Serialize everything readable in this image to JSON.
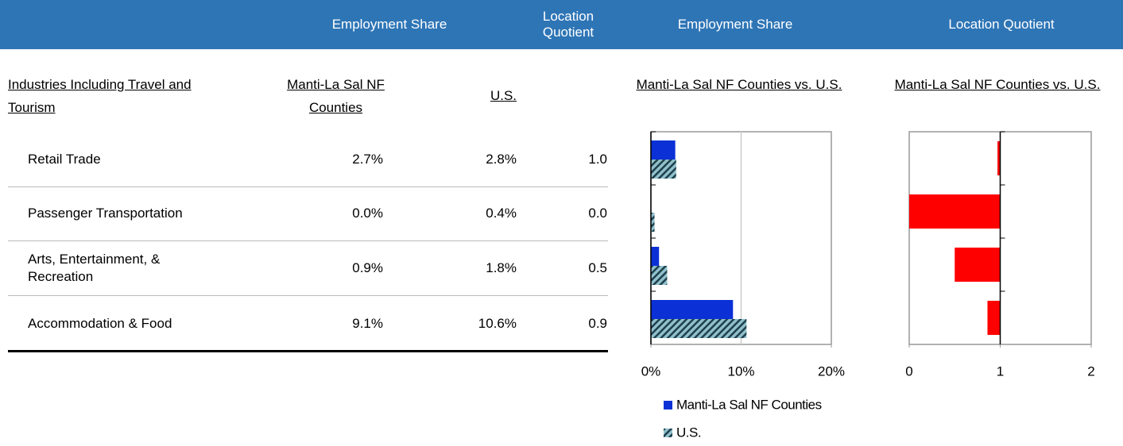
{
  "table": {
    "bands": [
      "Employment Share",
      "Location Quotient"
    ],
    "columns": [
      "Industries Including Travel and Tourism",
      "Manti-La Sal NF Counties",
      "U.S."
    ],
    "rows": [
      [
        "Retail Trade",
        "2.7%",
        "2.8%",
        "1.0"
      ],
      [
        "Passenger Transportation",
        "0.0%",
        "0.4%",
        "0.0"
      ],
      [
        "Arts, Entertainment, & Recreation",
        "0.9%",
        "1.8%",
        "0.5"
      ],
      [
        "Accommodation & Food",
        "9.1%",
        "10.6%",
        "0.9"
      ]
    ]
  },
  "chart_data": [
    {
      "type": "bar",
      "orientation": "horizontal",
      "title": "Employment Share",
      "subtitle": "Manti-La Sal NF Counties vs. U.S.",
      "series": [
        {
          "name": "Manti-La Sal NF Counties",
          "color": "#0b31d6",
          "values": [
            2.7,
            0.0,
            0.9,
            9.1
          ]
        },
        {
          "name": "U.S.",
          "color": "#8fc0cc",
          "hatch": true,
          "values": [
            2.8,
            0.4,
            1.8,
            10.6
          ]
        }
      ],
      "xlim": [
        0,
        20
      ],
      "xticks": [
        {
          "value": 0,
          "label": "0%"
        },
        {
          "value": 10,
          "label": "10%"
        },
        {
          "value": 20,
          "label": "20%"
        }
      ],
      "grid": true,
      "legend": "bottom"
    },
    {
      "type": "bar",
      "orientation": "horizontal",
      "title": "Location Quotient",
      "subtitle": "Manti-La Sal NF Counties vs. U.S.",
      "series": [
        {
          "color": "#ff0000",
          "values": [
            0.97,
            0.0,
            0.5,
            0.86
          ]
        }
      ],
      "origin": 1,
      "xlim": [
        0,
        2
      ],
      "xticks": [
        0,
        1,
        2
      ],
      "grid": false
    }
  ]
}
